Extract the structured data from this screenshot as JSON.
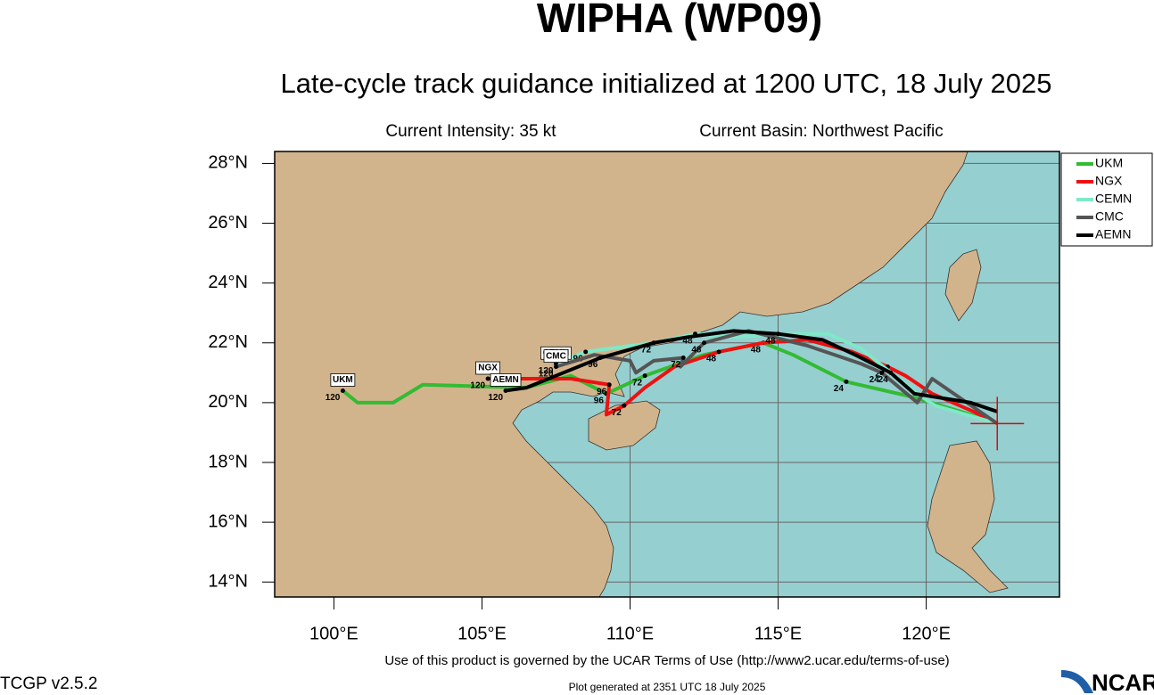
{
  "title": "WIPHA (WP09)",
  "subtitle": "Late-cycle track guidance initialized at 1200 UTC, 18 July 2025",
  "intensity": "Current Intensity: 35 kt",
  "basin": "Current Basin: Northwest Pacific",
  "terms": "Use of this product is governed by the UCAR Terms of Use (http://www2.ucar.edu/terms-of-use)",
  "version": "TCGP v2.5.2",
  "generated": "Plot generated at 2351 UTC   18 July 2025",
  "logo": "NCAR",
  "map": {
    "xlim": [
      98,
      124.5
    ],
    "ylim": [
      13.5,
      28.4
    ],
    "xticks": [
      {
        "value": 100,
        "label": "100°E"
      },
      {
        "value": 105,
        "label": "105°E"
      },
      {
        "value": 110,
        "label": "110°E"
      },
      {
        "value": 115,
        "label": "115°E"
      },
      {
        "value": 120,
        "label": "120°E"
      }
    ],
    "yticks": [
      {
        "value": 14,
        "label": "14°N"
      },
      {
        "value": 16,
        "label": "16°N"
      },
      {
        "value": 18,
        "label": "18°N"
      },
      {
        "value": 20,
        "label": "20°N"
      },
      {
        "value": 22,
        "label": "22°N"
      },
      {
        "value": 24,
        "label": "24°N"
      },
      {
        "value": 26,
        "label": "26°N"
      },
      {
        "value": 28,
        "label": "28°N"
      }
    ],
    "grid": true,
    "storm_position": {
      "lon": 122.4,
      "lat": 19.3
    },
    "series": [
      {
        "name": "UKM",
        "color": "#33bb33",
        "lon": [
          122.4,
          121.5,
          119.5,
          117.3,
          115.5,
          114.5,
          112.5,
          110.5,
          109.2,
          108,
          106.5,
          103,
          102,
          100.8,
          100.3
        ],
        "lat": [
          19.3,
          19.6,
          20.2,
          20.7,
          21.6,
          22.0,
          21.6,
          20.9,
          20.3,
          20.9,
          20.5,
          20.6,
          20.0,
          20.0,
          20.4
        ],
        "hours": [
          null,
          null,
          null,
          24,
          null,
          48,
          null,
          72,
          96,
          null,
          null,
          null,
          null,
          null,
          120
        ]
      },
      {
        "name": "NGX",
        "color": "#ee1111",
        "lon": [
          122.4,
          121.6,
          120.2,
          119.3,
          118.7,
          117.5,
          116,
          114.5,
          113,
          111.5,
          110.5,
          109.8,
          109.2,
          109.3,
          108,
          107,
          105.2
        ],
        "lat": [
          19.3,
          19.7,
          20.3,
          20.9,
          21.2,
          21.7,
          22.1,
          22.0,
          21.7,
          21.2,
          20.5,
          19.9,
          19.6,
          20.6,
          20.8,
          20.8,
          20.8
        ],
        "hours": [
          null,
          null,
          null,
          null,
          24,
          null,
          null,
          null,
          48,
          null,
          null,
          72,
          null,
          96,
          null,
          null,
          120
        ]
      },
      {
        "name": "CEMN",
        "color": "#7fe8c8",
        "lon": [
          122.4,
          120.3,
          119.7,
          117.8,
          116.7,
          115.5,
          113.5,
          112.2,
          110.8,
          110,
          108.5,
          107.5
        ],
        "lat": [
          19.3,
          19.9,
          20.3,
          21.8,
          22.3,
          22.3,
          22.2,
          22.3,
          22.0,
          21.9,
          21.7,
          21.3
        ],
        "hours": [
          null,
          null,
          null,
          null,
          null,
          null,
          null,
          48,
          null,
          null,
          96,
          120
        ]
      },
      {
        "name": "CMC",
        "color": "#555555",
        "lon": [
          122.4,
          120.2,
          119.7,
          118.5,
          117.8,
          116,
          114,
          112.5,
          111.7,
          111.8,
          110.8,
          110.2,
          110,
          108.8,
          107.5
        ],
        "lat": [
          19.3,
          20.8,
          20.0,
          21.0,
          21.3,
          21.9,
          22.4,
          22.0,
          21.2,
          21.5,
          21.4,
          21.0,
          21.4,
          21.6,
          21.2
        ],
        "hours": [
          null,
          null,
          null,
          24,
          null,
          null,
          null,
          48,
          null,
          72,
          null,
          null,
          null,
          null,
          120
        ]
      },
      {
        "name": "AEMN",
        "color": "#000000",
        "lon": [
          122.4,
          121.5,
          119.6,
          118.8,
          117.6,
          116.5,
          115,
          113.5,
          112,
          110.8,
          109,
          107.5,
          106.5,
          105.8
        ],
        "lat": [
          19.7,
          20.0,
          20.3,
          21.0,
          21.6,
          22.1,
          22.3,
          22.4,
          22.2,
          22.0,
          21.5,
          20.9,
          20.5,
          20.4
        ],
        "hours": [
          null,
          null,
          null,
          24,
          null,
          null,
          48,
          null,
          null,
          72,
          96,
          null,
          null,
          120
        ]
      }
    ]
  }
}
